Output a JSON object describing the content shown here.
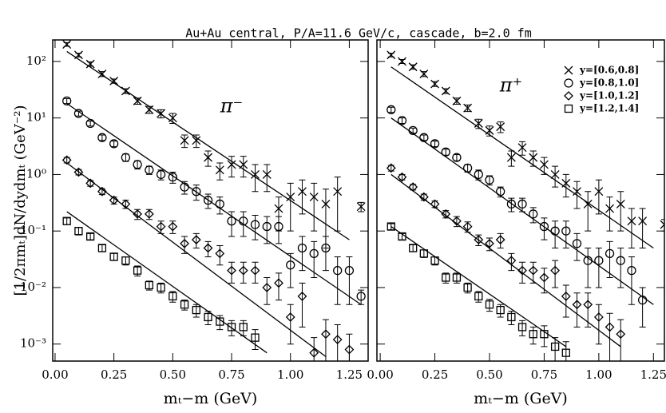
{
  "chart_data": [
    {
      "type": "scatter",
      "title": "Au+Au central, P/A=11.6 GeV/c, cascade, b=2.0 fm",
      "panel_label": "π⁻",
      "x_label": "mₜ−m (GeV)",
      "y_label": "[1/2πmₜ]dN/dydmₜ (GeV⁻²)",
      "log_y": true,
      "xlim": [
        -0.01,
        1.33
      ],
      "ylim": [
        0.0005,
        240
      ],
      "xticks": [
        {
          "value": 0,
          "label": "0.00"
        },
        {
          "value": 0.25,
          "label": "0.25"
        },
        {
          "value": 0.5,
          "label": "0.50"
        },
        {
          "value": 0.75,
          "label": "0.75"
        },
        {
          "value": 1,
          "label": "1.00"
        },
        {
          "value": 1.25,
          "label": "1.25"
        }
      ],
      "yticks": [
        {
          "value": 100,
          "label": "10²"
        },
        {
          "value": 10,
          "label": "10¹"
        },
        {
          "value": 1,
          "label": "10⁰"
        },
        {
          "value": 0.1,
          "label": "10⁻¹"
        },
        {
          "value": 0.01,
          "label": "10⁻²"
        },
        {
          "value": 0.001,
          "label": "10⁻³"
        }
      ],
      "series": [
        {
          "marker": "cross",
          "color": "#000000",
          "x": [
            0.05,
            0.1,
            0.15,
            0.2,
            0.25,
            0.3,
            0.35,
            0.4,
            0.45,
            0.5,
            0.55,
            0.6,
            0.65,
            0.7,
            0.75,
            0.8,
            0.85,
            0.9,
            0.95,
            1.0,
            1.05,
            1.1,
            1.15,
            1.2,
            1.3
          ],
          "values": [
            200,
            130,
            90,
            60,
            45,
            30,
            20,
            14,
            12,
            10,
            4,
            4,
            2,
            1.2,
            1.5,
            1.5,
            1,
            1,
            0.25,
            0.4,
            0.5,
            0.4,
            0.3,
            0.5,
            0.27
          ],
          "errors": [
            15,
            10,
            8,
            6,
            4,
            3,
            2.5,
            2,
            2,
            2,
            1,
            1,
            0.6,
            0.4,
            0.6,
            0.6,
            0.5,
            0.5,
            0.15,
            0.3,
            0.3,
            0.3,
            0.25,
            0.4,
            0.05
          ],
          "fit_x": [
            0.05,
            1.25
          ],
          "fit_y": [
            150,
            0.07
          ]
        },
        {
          "marker": "circle",
          "color": "#000000",
          "x": [
            0.05,
            0.1,
            0.15,
            0.2,
            0.25,
            0.3,
            0.35,
            0.4,
            0.45,
            0.5,
            0.55,
            0.6,
            0.65,
            0.7,
            0.75,
            0.8,
            0.85,
            0.9,
            0.95,
            1.0,
            1.05,
            1.1,
            1.15,
            1.2,
            1.25,
            1.3
          ],
          "values": [
            20,
            12,
            8,
            4.5,
            3.5,
            2,
            1.5,
            1.2,
            1,
            0.9,
            0.6,
            0.5,
            0.35,
            0.3,
            0.15,
            0.15,
            0.13,
            0.12,
            0.12,
            0.025,
            0.05,
            0.04,
            0.05,
            0.02,
            0.02,
            0.007
          ],
          "errors": [
            2,
            1.2,
            0.8,
            0.5,
            0.4,
            0.3,
            0.25,
            0.2,
            0.2,
            0.2,
            0.15,
            0.15,
            0.1,
            0.1,
            0.07,
            0.07,
            0.06,
            0.06,
            0.06,
            0.015,
            0.03,
            0.025,
            0.03,
            0.015,
            0.015,
            0.002
          ],
          "fit_x": [
            0.05,
            1.3
          ],
          "fit_y": [
            18,
            0.005
          ]
        },
        {
          "marker": "diamond",
          "color": "#000000",
          "x": [
            0.05,
            0.1,
            0.15,
            0.2,
            0.25,
            0.3,
            0.35,
            0.4,
            0.45,
            0.5,
            0.55,
            0.6,
            0.65,
            0.7,
            0.75,
            0.8,
            0.85,
            0.9,
            0.95,
            1.0,
            1.05,
            1.1,
            1.15,
            1.2,
            1.25
          ],
          "values": [
            1.8,
            1.1,
            0.7,
            0.5,
            0.35,
            0.3,
            0.2,
            0.2,
            0.12,
            0.12,
            0.06,
            0.07,
            0.05,
            0.04,
            0.02,
            0.02,
            0.02,
            0.01,
            0.012,
            0.003,
            0.007,
            0.0007,
            0.0015,
            0.0012,
            0.0008
          ],
          "errors": [
            0.2,
            0.12,
            0.08,
            0.06,
            0.05,
            0.05,
            0.04,
            0.04,
            0.03,
            0.03,
            0.02,
            0.02,
            0.015,
            0.015,
            0.008,
            0.008,
            0.008,
            0.005,
            0.006,
            0.002,
            0.005,
            0.0006,
            0.0012,
            0.001,
            0.0007
          ],
          "fit_x": [
            0.05,
            1.15
          ],
          "fit_y": [
            1.6,
            0.0006
          ]
        },
        {
          "marker": "square",
          "color": "#000000",
          "x": [
            0.05,
            0.1,
            0.15,
            0.2,
            0.25,
            0.3,
            0.35,
            0.4,
            0.45,
            0.5,
            0.55,
            0.6,
            0.65,
            0.7,
            0.75,
            0.8,
            0.85
          ],
          "values": [
            0.15,
            0.1,
            0.08,
            0.05,
            0.035,
            0.03,
            0.02,
            0.011,
            0.01,
            0.007,
            0.005,
            0.004,
            0.003,
            0.0025,
            0.002,
            0.002,
            0.0013
          ],
          "errors": [
            0.02,
            0.015,
            0.01,
            0.007,
            0.005,
            0.005,
            0.004,
            0.002,
            0.002,
            0.0015,
            0.001,
            0.001,
            0.0008,
            0.0007,
            0.0006,
            0.0006,
            0.0005
          ],
          "fit_x": [
            0.05,
            0.9
          ],
          "fit_y": [
            0.22,
            0.0007
          ]
        }
      ]
    },
    {
      "type": "scatter",
      "panel_label": "π⁺",
      "x_label": "mₜ−m (GeV)",
      "log_y": true,
      "xlim": [
        -0.015,
        1.3
      ],
      "ylim": [
        0.0005,
        240
      ],
      "legend": "upper right",
      "xticks": [
        {
          "value": 0,
          "label": "0.00"
        },
        {
          "value": 0.25,
          "label": "0.25"
        },
        {
          "value": 0.5,
          "label": "0.50"
        },
        {
          "value": 0.75,
          "label": "0.75"
        },
        {
          "value": 1,
          "label": "1.00"
        },
        {
          "value": 1.25,
          "label": "1.25"
        }
      ],
      "yticks": [
        100,
        10,
        1,
        0.1,
        0.01,
        0.001
      ],
      "series": [
        {
          "name": "y=[0.6,0.8]",
          "marker": "cross",
          "color": "#000000",
          "x": [
            0.05,
            0.1,
            0.15,
            0.2,
            0.25,
            0.3,
            0.35,
            0.4,
            0.45,
            0.5,
            0.55,
            0.6,
            0.65,
            0.7,
            0.75,
            0.8,
            0.85,
            0.9,
            0.95,
            1.0,
            1.05,
            1.1,
            1.15,
            1.2,
            1.3
          ],
          "values": [
            130,
            100,
            80,
            60,
            40,
            30,
            20,
            15,
            8,
            6,
            7,
            2,
            3,
            2,
            1.5,
            1,
            0.7,
            0.5,
            0.3,
            0.5,
            0.25,
            0.3,
            0.15,
            0.15,
            0.13
          ],
          "errors": [
            10,
            8,
            7,
            6,
            4,
            3,
            2.5,
            2,
            1.5,
            1.2,
            1.5,
            0.6,
            0.8,
            0.6,
            0.5,
            0.4,
            0.3,
            0.25,
            0.2,
            0.3,
            0.15,
            0.2,
            0.1,
            0.1,
            0.03
          ],
          "fit_x": [
            0.05,
            1.25
          ],
          "fit_y": [
            80,
            0.05
          ]
        },
        {
          "name": "y=[0.8,1.0]",
          "marker": "circle",
          "color": "#000000",
          "x": [
            0.05,
            0.1,
            0.15,
            0.2,
            0.25,
            0.3,
            0.35,
            0.4,
            0.45,
            0.5,
            0.55,
            0.6,
            0.65,
            0.7,
            0.75,
            0.8,
            0.85,
            0.9,
            0.95,
            1.0,
            1.05,
            1.1,
            1.15,
            1.2
          ],
          "values": [
            14,
            9,
            6,
            4.5,
            3.5,
            2.5,
            2,
            1.3,
            1,
            0.8,
            0.5,
            0.3,
            0.3,
            0.2,
            0.12,
            0.1,
            0.1,
            0.06,
            0.03,
            0.03,
            0.04,
            0.03,
            0.02,
            0.006
          ],
          "errors": [
            1.5,
            1,
            0.6,
            0.5,
            0.4,
            0.3,
            0.25,
            0.2,
            0.2,
            0.15,
            0.1,
            0.08,
            0.08,
            0.06,
            0.05,
            0.05,
            0.05,
            0.03,
            0.02,
            0.02,
            0.025,
            0.02,
            0.015,
            0.004
          ],
          "fit_x": [
            0.05,
            1.25
          ],
          "fit_y": [
            10,
            0.005
          ]
        },
        {
          "name": "y=[1.0,1.2]",
          "marker": "diamond",
          "color": "#000000",
          "x": [
            0.05,
            0.1,
            0.15,
            0.2,
            0.25,
            0.3,
            0.35,
            0.4,
            0.45,
            0.5,
            0.55,
            0.6,
            0.65,
            0.7,
            0.75,
            0.8,
            0.85,
            0.9,
            0.95,
            1.0,
            1.05,
            1.1
          ],
          "values": [
            1.3,
            0.9,
            0.6,
            0.4,
            0.3,
            0.2,
            0.15,
            0.12,
            0.07,
            0.06,
            0.07,
            0.03,
            0.02,
            0.02,
            0.015,
            0.02,
            0.007,
            0.005,
            0.005,
            0.003,
            0.002,
            0.0015
          ],
          "errors": [
            0.15,
            0.1,
            0.07,
            0.05,
            0.04,
            0.03,
            0.03,
            0.025,
            0.015,
            0.015,
            0.02,
            0.01,
            0.008,
            0.008,
            0.007,
            0.01,
            0.004,
            0.003,
            0.003,
            0.002,
            0.0015,
            0.0012
          ],
          "fit_x": [
            0.05,
            1.1
          ],
          "fit_y": [
            1.0,
            0.0009
          ]
        },
        {
          "name": "y=[1.2,1.4]",
          "marker": "square",
          "color": "#000000",
          "x": [
            0.05,
            0.1,
            0.15,
            0.2,
            0.25,
            0.3,
            0.35,
            0.4,
            0.45,
            0.5,
            0.55,
            0.6,
            0.65,
            0.7,
            0.75,
            0.8,
            0.85
          ],
          "values": [
            0.12,
            0.08,
            0.05,
            0.04,
            0.03,
            0.015,
            0.015,
            0.01,
            0.007,
            0.005,
            0.004,
            0.003,
            0.002,
            0.0015,
            0.0015,
            0.0009,
            0.0007
          ],
          "errors": [
            0.015,
            0.01,
            0.007,
            0.006,
            0.005,
            0.003,
            0.003,
            0.002,
            0.0015,
            0.0012,
            0.001,
            0.0008,
            0.0006,
            0.0005,
            0.0006,
            0.0004,
            0.0004
          ],
          "fit_x": [
            0.05,
            0.85
          ],
          "fit_y": [
            0.12,
            0.0009
          ]
        }
      ]
    }
  ]
}
